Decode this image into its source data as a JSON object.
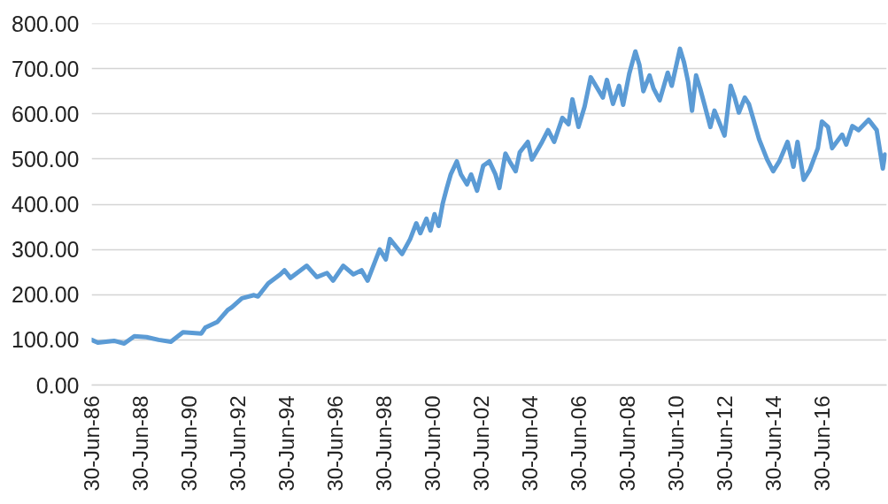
{
  "chart_data": {
    "type": "line",
    "color": "#5b9bd5",
    "line_style": "solid",
    "grid": "y",
    "xlim": [
      "1986-06-30",
      "2019-02-28"
    ],
    "ylim": [
      0,
      800
    ],
    "xticks": [
      {
        "value": "1986-06-30",
        "label": "30-Jun-86"
      },
      {
        "value": "1988-06-30",
        "label": "30-Jun-88"
      },
      {
        "value": "1990-06-30",
        "label": "30-Jun-90"
      },
      {
        "value": "1992-06-30",
        "label": "30-Jun-92"
      },
      {
        "value": "1994-06-30",
        "label": "30-Jun-94"
      },
      {
        "value": "1996-06-30",
        "label": "30-Jun-96"
      },
      {
        "value": "1998-06-30",
        "label": "30-Jun-98"
      },
      {
        "value": "2000-06-30",
        "label": "30-Jun-00"
      },
      {
        "value": "2002-06-30",
        "label": "30-Jun-02"
      },
      {
        "value": "2004-06-30",
        "label": "30-Jun-04"
      },
      {
        "value": "2006-06-30",
        "label": "30-Jun-06"
      },
      {
        "value": "2008-06-30",
        "label": "30-Jun-08"
      },
      {
        "value": "2010-06-30",
        "label": "30-Jun-10"
      },
      {
        "value": "2012-06-30",
        "label": "30-Jun-12"
      },
      {
        "value": "2014-06-30",
        "label": "30-Jun-14"
      },
      {
        "value": "2016-06-30",
        "label": "30-Jun-16"
      }
    ],
    "yticks": [
      {
        "value": 0,
        "label": "0.00"
      },
      {
        "value": 100,
        "label": "100.00"
      },
      {
        "value": 200,
        "label": "200.00"
      },
      {
        "value": 300,
        "label": "300.00"
      },
      {
        "value": 400,
        "label": "400.00"
      },
      {
        "value": 500,
        "label": "500.00"
      },
      {
        "value": 600,
        "label": "600.00"
      },
      {
        "value": 700,
        "label": "700.00"
      },
      {
        "value": 800,
        "label": "800.00"
      }
    ],
    "x": [
      "1986-06-30",
      "1986-10",
      "1987-06",
      "1987-11",
      "1988-04",
      "1988-10",
      "1989-04",
      "1989-10",
      "1990-04",
      "1991-01",
      "1991-03",
      "1991-09",
      "1992-02",
      "1992-04",
      "1992-09",
      "1993-03",
      "1993-05",
      "1993-10",
      "1994-04",
      "1994-06",
      "1994-09",
      "1995-05",
      "1995-10",
      "1996-03",
      "1996-06",
      "1996-11",
      "1997-04",
      "1997-08",
      "1997-11",
      "1998-05",
      "1998-08",
      "1998-10",
      "1999-04",
      "1999-08",
      "1999-11",
      "2000-01",
      "2000-04",
      "2000-06",
      "2000-08",
      "2000-10",
      "2000-12",
      "2001-02",
      "2001-04",
      "2001-07",
      "2001-09",
      "2001-12",
      "2002-02",
      "2002-05",
      "2002-08",
      "2002-11",
      "2003-02",
      "2003-04",
      "2003-07",
      "2003-09",
      "2003-12",
      "2004-02",
      "2004-06",
      "2004-08",
      "2005-01",
      "2005-04",
      "2005-07",
      "2005-11",
      "2006-02",
      "2006-04",
      "2006-07",
      "2006-10",
      "2007-01",
      "2007-07",
      "2007-09",
      "2007-12",
      "2008-03",
      "2008-05",
      "2008-08",
      "2008-11",
      "2009-01",
      "2009-03",
      "2009-06",
      "2009-08",
      "2009-11",
      "2010-03",
      "2010-05",
      "2010-09",
      "2010-11",
      "2011-01",
      "2011-03",
      "2011-05",
      "2011-07",
      "2011-09",
      "2011-12",
      "2012-02",
      "2012-07",
      "2012-10",
      "2012-12",
      "2013-02",
      "2013-05",
      "2013-07",
      "2013-09",
      "2013-12",
      "2014-04",
      "2014-07",
      "2014-10",
      "2015-02",
      "2015-05",
      "2015-07",
      "2015-10",
      "2016-01",
      "2016-05",
      "2016-07",
      "2016-10",
      "2016-12",
      "2017-05",
      "2017-07",
      "2017-10",
      "2018-01",
      "2018-06",
      "2018-10",
      "2019-01",
      "2019-02"
    ],
    "values": [
      100,
      94,
      98,
      92,
      108,
      106,
      100,
      96,
      117,
      114,
      127,
      140,
      166,
      172,
      192,
      199,
      196,
      225,
      245,
      254,
      237,
      264,
      239,
      248,
      231,
      264,
      245,
      254,
      231,
      300,
      278,
      323,
      290,
      323,
      358,
      336,
      368,
      342,
      378,
      352,
      401,
      436,
      466,
      495,
      466,
      444,
      466,
      430,
      485,
      495,
      466,
      436,
      512,
      495,
      473,
      515,
      538,
      499,
      538,
      564,
      538,
      591,
      577,
      632,
      571,
      616,
      681,
      636,
      675,
      622,
      662,
      620,
      689,
      738,
      708,
      650,
      685,
      656,
      630,
      691,
      662,
      744,
      714,
      671,
      607,
      685,
      656,
      622,
      571,
      607,
      552,
      662,
      636,
      603,
      636,
      622,
      591,
      544,
      499,
      473,
      495,
      538,
      483,
      538,
      454,
      476,
      524,
      583,
      571,
      524,
      554,
      532,
      573,
      564,
      587,
      564,
      479,
      510
    ]
  }
}
